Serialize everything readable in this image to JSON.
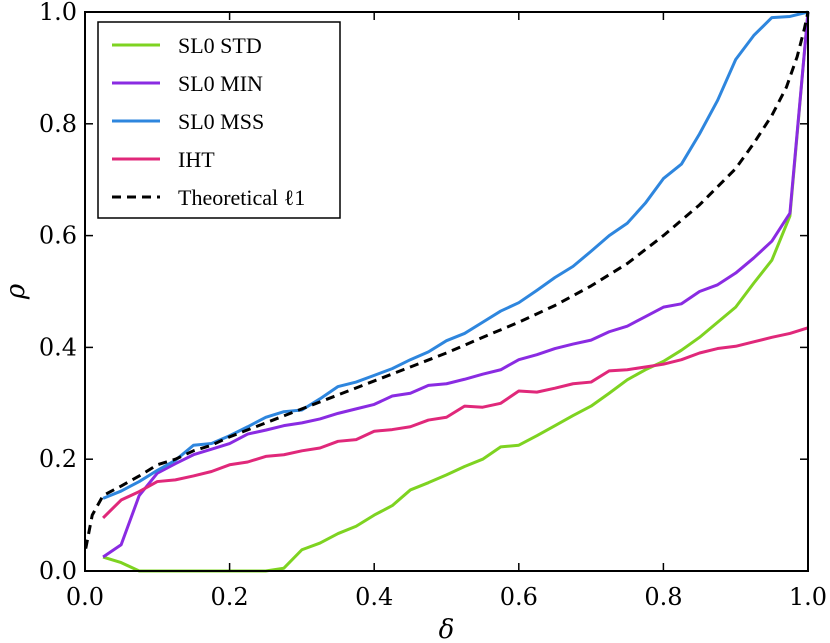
{
  "chart_data": {
    "type": "line",
    "title": "",
    "xlabel": "δ",
    "ylabel": "ρ",
    "xlim": [
      0,
      1
    ],
    "ylim": [
      0,
      1
    ],
    "xticks": [
      0,
      0.2,
      0.4,
      0.6,
      0.8,
      1.0
    ],
    "yticks": [
      0,
      0.2,
      0.4,
      0.6,
      0.8,
      1.0
    ],
    "xtick_labels": [
      "0.0",
      "0.2",
      "0.4",
      "0.6",
      "0.8",
      "1.0"
    ],
    "ytick_labels": [
      "0.0",
      "0.2",
      "0.4",
      "0.6",
      "0.8",
      "1.0"
    ],
    "grid": false,
    "legend_position": "top-left",
    "series": [
      {
        "name": "SL0 STD",
        "color": "#7ed321",
        "dash": "solid",
        "x": [
          0.025,
          0.05,
          0.075,
          0.1,
          0.125,
          0.15,
          0.175,
          0.2,
          0.225,
          0.25,
          0.275,
          0.3,
          0.325,
          0.35,
          0.375,
          0.4,
          0.425,
          0.45,
          0.475,
          0.5,
          0.525,
          0.55,
          0.575,
          0.6,
          0.625,
          0.65,
          0.675,
          0.7,
          0.725,
          0.75,
          0.775,
          0.8,
          0.825,
          0.85,
          0.875,
          0.9,
          0.925,
          0.95,
          0.975,
          1.0
        ],
        "y": [
          0.025,
          0.015,
          0.0,
          0.0,
          0.0,
          0.0,
          0.0,
          0.0,
          0.0,
          0.0,
          0.005,
          0.038,
          0.05,
          0.067,
          0.08,
          0.1,
          0.117,
          0.145,
          0.158,
          0.172,
          0.187,
          0.2,
          0.222,
          0.225,
          0.242,
          0.26,
          0.278,
          0.295,
          0.318,
          0.342,
          0.36,
          0.375,
          0.395,
          0.418,
          0.445,
          0.472,
          0.515,
          0.556,
          0.635,
          1.0
        ]
      },
      {
        "name": "SL0 MIN",
        "color": "#8a2be2",
        "dash": "solid",
        "x": [
          0.025,
          0.05,
          0.075,
          0.1,
          0.125,
          0.15,
          0.175,
          0.2,
          0.225,
          0.25,
          0.275,
          0.3,
          0.325,
          0.35,
          0.375,
          0.4,
          0.425,
          0.45,
          0.475,
          0.5,
          0.525,
          0.55,
          0.575,
          0.6,
          0.625,
          0.65,
          0.675,
          0.7,
          0.725,
          0.75,
          0.775,
          0.8,
          0.825,
          0.85,
          0.875,
          0.9,
          0.925,
          0.95,
          0.975,
          1.0
        ],
        "y": [
          0.025,
          0.047,
          0.135,
          0.175,
          0.192,
          0.208,
          0.218,
          0.228,
          0.245,
          0.252,
          0.26,
          0.265,
          0.272,
          0.282,
          0.29,
          0.298,
          0.313,
          0.318,
          0.332,
          0.335,
          0.343,
          0.352,
          0.36,
          0.378,
          0.387,
          0.398,
          0.406,
          0.413,
          0.428,
          0.438,
          0.455,
          0.472,
          0.478,
          0.5,
          0.512,
          0.533,
          0.56,
          0.59,
          0.64,
          1.0
        ]
      },
      {
        "name": "SL0 MSS",
        "color": "#2e86de",
        "dash": "solid",
        "x": [
          0.025,
          0.05,
          0.075,
          0.1,
          0.125,
          0.15,
          0.175,
          0.2,
          0.225,
          0.25,
          0.275,
          0.3,
          0.325,
          0.35,
          0.375,
          0.4,
          0.425,
          0.45,
          0.475,
          0.5,
          0.525,
          0.55,
          0.575,
          0.6,
          0.625,
          0.65,
          0.675,
          0.7,
          0.725,
          0.75,
          0.775,
          0.8,
          0.825,
          0.85,
          0.875,
          0.9,
          0.925,
          0.95,
          0.975,
          1.0
        ],
        "y": [
          0.13,
          0.143,
          0.16,
          0.18,
          0.198,
          0.225,
          0.228,
          0.242,
          0.258,
          0.275,
          0.285,
          0.288,
          0.308,
          0.33,
          0.338,
          0.35,
          0.362,
          0.378,
          0.392,
          0.412,
          0.425,
          0.445,
          0.465,
          0.48,
          0.502,
          0.525,
          0.545,
          0.572,
          0.6,
          0.622,
          0.658,
          0.702,
          0.728,
          0.782,
          0.842,
          0.915,
          0.958,
          0.99,
          0.992,
          1.0
        ]
      },
      {
        "name": "IHT",
        "color": "#e0287a",
        "dash": "solid",
        "x": [
          0.025,
          0.05,
          0.075,
          0.1,
          0.125,
          0.15,
          0.175,
          0.2,
          0.225,
          0.25,
          0.275,
          0.3,
          0.325,
          0.35,
          0.375,
          0.4,
          0.425,
          0.45,
          0.475,
          0.5,
          0.525,
          0.55,
          0.575,
          0.6,
          0.625,
          0.65,
          0.675,
          0.7,
          0.725,
          0.75,
          0.775,
          0.8,
          0.825,
          0.85,
          0.875,
          0.9,
          0.925,
          0.95,
          0.975,
          1.0
        ],
        "y": [
          0.095,
          0.127,
          0.142,
          0.16,
          0.163,
          0.17,
          0.178,
          0.19,
          0.195,
          0.205,
          0.208,
          0.215,
          0.22,
          0.232,
          0.235,
          0.25,
          0.253,
          0.258,
          0.27,
          0.275,
          0.295,
          0.293,
          0.3,
          0.322,
          0.32,
          0.327,
          0.335,
          0.338,
          0.358,
          0.36,
          0.365,
          0.37,
          0.378,
          0.39,
          0.398,
          0.402,
          0.41,
          0.418,
          0.425,
          0.435
        ]
      },
      {
        "name": "Theoretical ℓ1",
        "color": "#000000",
        "dash": "dashed",
        "x": [
          0.001,
          0.01,
          0.025,
          0.05,
          0.075,
          0.1,
          0.125,
          0.15,
          0.175,
          0.2,
          0.25,
          0.3,
          0.35,
          0.4,
          0.45,
          0.5,
          0.55,
          0.6,
          0.65,
          0.7,
          0.75,
          0.8,
          0.85,
          0.9,
          0.925,
          0.95,
          0.97,
          0.985,
          0.995,
          1.0
        ],
        "y": [
          0.04,
          0.1,
          0.135,
          0.152,
          0.17,
          0.19,
          0.2,
          0.215,
          0.225,
          0.24,
          0.265,
          0.29,
          0.315,
          0.34,
          0.365,
          0.39,
          0.418,
          0.445,
          0.475,
          0.51,
          0.55,
          0.6,
          0.655,
          0.72,
          0.765,
          0.815,
          0.865,
          0.92,
          0.97,
          1.0
        ]
      }
    ]
  }
}
